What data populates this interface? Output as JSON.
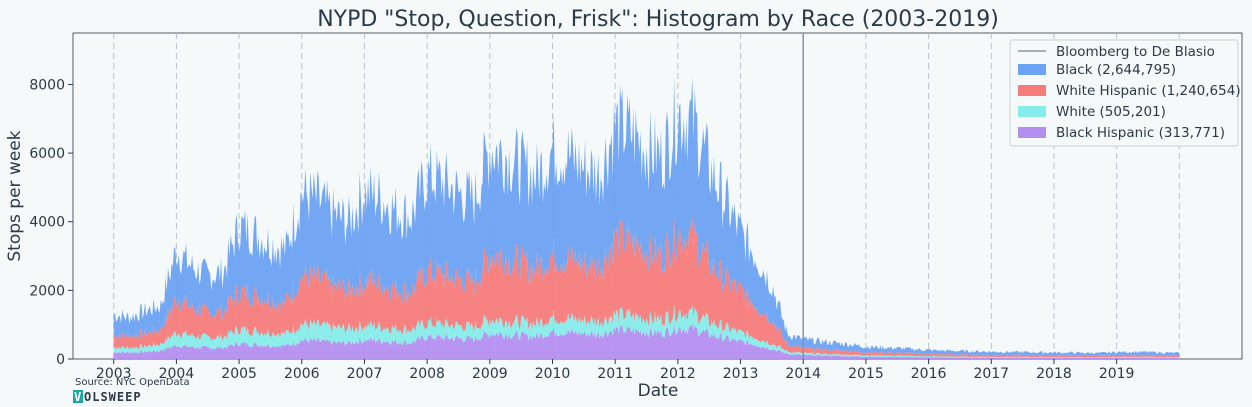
{
  "chart_data": {
    "type": "area",
    "title": "NYPD \"Stop, Question, Frisk\": Histogram by Race (2003-2019)",
    "xlabel": "Date",
    "ylabel": "Stops per week",
    "xlim": [
      2002.35,
      2021.0
    ],
    "ylim": [
      0,
      9500
    ],
    "x_ticks": [
      "2003",
      "2004",
      "2005",
      "2006",
      "2007",
      "2008",
      "2009",
      "2010",
      "2011",
      "2012",
      "2013",
      "2014",
      "2015",
      "2016",
      "2017",
      "2018",
      "2019"
    ],
    "y_ticks": [
      0,
      2000,
      4000,
      6000,
      8000
    ],
    "vertical_line": {
      "x": 2014.0,
      "label": "Bloomberg to De Blasio",
      "color": "#8a96a3"
    },
    "grid": "vertical dashed at year boundaries",
    "legend_position": "top-right",
    "stacking_order": [
      "Black Hispanic",
      "White",
      "White Hispanic",
      "Black"
    ],
    "x": [
      2003.0,
      2003.25,
      2003.5,
      2003.75,
      2004.0,
      2004.25,
      2004.5,
      2004.75,
      2005.0,
      2005.25,
      2005.5,
      2005.75,
      2006.0,
      2006.25,
      2006.5,
      2006.75,
      2007.0,
      2007.25,
      2007.5,
      2007.75,
      2008.0,
      2008.25,
      2008.5,
      2008.75,
      2009.0,
      2009.25,
      2009.5,
      2009.75,
      2010.0,
      2010.25,
      2010.5,
      2010.75,
      2011.0,
      2011.25,
      2011.5,
      2011.75,
      2012.0,
      2012.25,
      2012.5,
      2012.75,
      2013.0,
      2013.25,
      2013.5,
      2013.75,
      2014.0,
      2014.25,
      2014.5,
      2014.75,
      2015.0,
      2015.25,
      2015.5,
      2015.75,
      2016.0,
      2016.25,
      2016.5,
      2016.75,
      2017.0,
      2017.25,
      2017.5,
      2017.75,
      2018.0,
      2018.25,
      2018.5,
      2018.75,
      2019.0,
      2019.25,
      2019.5,
      2019.75,
      2020.0
    ],
    "series": [
      {
        "name": "Black Hispanic (313,771)",
        "color": "#b38ff0",
        "values": [
          200,
          190,
          210,
          250,
          400,
          350,
          320,
          330,
          450,
          420,
          400,
          380,
          550,
          520,
          480,
          460,
          560,
          540,
          500,
          480,
          650,
          620,
          600,
          580,
          750,
          720,
          680,
          660,
          800,
          780,
          740,
          720,
          850,
          830,
          780,
          760,
          900,
          880,
          720,
          600,
          500,
          420,
          300,
          150,
          110,
          100,
          90,
          80,
          70,
          65,
          60,
          55,
          50,
          45,
          42,
          40,
          38,
          36,
          35,
          34,
          33,
          32,
          31,
          30,
          35,
          38,
          36,
          33,
          30
        ]
      },
      {
        "name": "White (505,201)",
        "color": "#86ecea",
        "values": [
          150,
          140,
          160,
          190,
          380,
          330,
          300,
          310,
          420,
          400,
          380,
          360,
          480,
          460,
          440,
          420,
          430,
          410,
          390,
          380,
          400,
          390,
          370,
          360,
          420,
          410,
          390,
          380,
          420,
          410,
          390,
          380,
          450,
          440,
          410,
          400,
          480,
          460,
          380,
          320,
          260,
          220,
          160,
          70,
          60,
          55,
          50,
          45,
          40,
          38,
          35,
          32,
          30,
          28,
          27,
          26,
          25,
          24,
          24,
          23,
          22,
          22,
          21,
          21,
          24,
          25,
          24,
          22,
          20
        ]
      },
      {
        "name": "White Hispanic (1,240,654)",
        "color": "#f67b7b",
        "values": [
          350,
          330,
          380,
          420,
          1000,
          800,
          700,
          750,
          1100,
          1050,
          950,
          900,
          1400,
          1350,
          1200,
          1100,
          1300,
          1250,
          1150,
          1100,
          1500,
          1450,
          1350,
          1300,
          1900,
          1850,
          1700,
          1600,
          1800,
          1750,
          1650,
          1600,
          2200,
          2150,
          1950,
          1850,
          2300,
          2200,
          1700,
          1400,
          1200,
          950,
          700,
          200,
          150,
          130,
          120,
          110,
          90,
          85,
          80,
          75,
          65,
          62,
          60,
          58,
          55,
          53,
          52,
          50,
          48,
          47,
          46,
          45,
          50,
          52,
          50,
          47,
          44
        ]
      },
      {
        "name": "Black (2,644,795)",
        "color": "#6ca2f3",
        "values": [
          600,
          550,
          650,
          700,
          1400,
          1200,
          1100,
          1150,
          1900,
          1800,
          1650,
          1550,
          2400,
          2300,
          2100,
          2000,
          2600,
          2500,
          2300,
          2200,
          2800,
          2700,
          2500,
          2400,
          3100,
          3000,
          2800,
          2700,
          3100,
          3000,
          2800,
          2700,
          3300,
          3200,
          3000,
          2900,
          3500,
          3400,
          2800,
          2300,
          1700,
          1400,
          1000,
          300,
          250,
          230,
          210,
          190,
          160,
          150,
          140,
          130,
          115,
          110,
          105,
          100,
          95,
          92,
          90,
          88,
          85,
          83,
          80,
          78,
          90,
          95,
          90,
          85,
          80
        ]
      }
    ]
  },
  "legend": {
    "line_label": "Bloomberg to De Blasio",
    "items": [
      {
        "label": "Black (2,644,795)",
        "color": "#6ca2f3"
      },
      {
        "label": "White Hispanic (1,240,654)",
        "color": "#f67b7b"
      },
      {
        "label": "White (505,201)",
        "color": "#86ecea"
      },
      {
        "label": "Black Hispanic (313,771)",
        "color": "#b38ff0"
      }
    ]
  },
  "footer": {
    "source": "Source: NYC OpenData",
    "brand_first": "V",
    "brand_rest": "OLSWEEP"
  }
}
